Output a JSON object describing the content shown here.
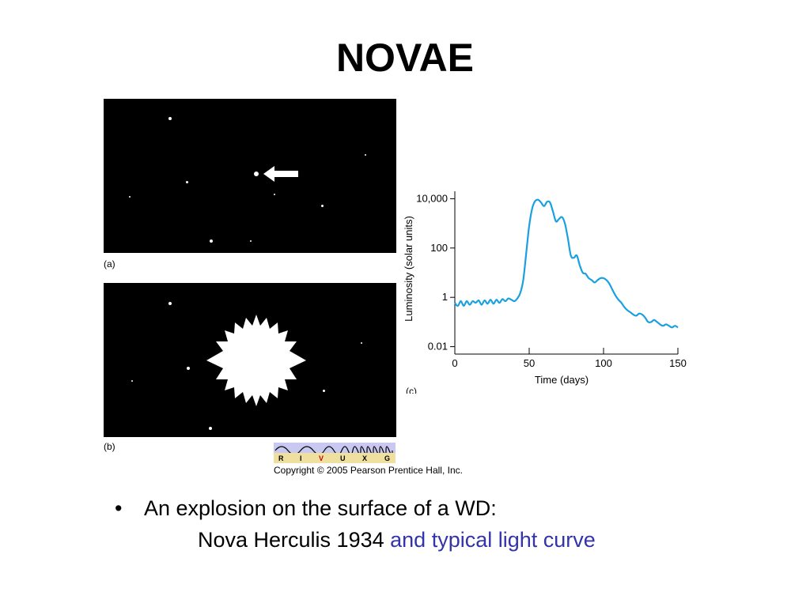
{
  "slide": {
    "title": "NOVAE",
    "panel_a_label": "(a)",
    "panel_b_label": "(b)",
    "panel_c_label": "(c)",
    "copyright": "Copyright © 2005 Pearson Prentice Hall, Inc.",
    "spectrum_letters": [
      "R",
      "I",
      "V",
      "U",
      "X",
      "G"
    ],
    "bullet": {
      "marker": "•",
      "line1": "An explosion on the surface of a WD:",
      "line2_plain": "Nova Herculis 1934",
      "line2_accent": "and typical light curve"
    }
  },
  "colors": {
    "curve": "#1aa0e0",
    "accent": "#3333aa",
    "photo_bg": "#000000"
  },
  "chart_data": {
    "type": "line",
    "title": "",
    "xlabel": "Time (days)",
    "ylabel": "Luminosity (solar units)",
    "x_ticks": [
      "0",
      "50",
      "100",
      "150"
    ],
    "y_ticks": [
      "0.01",
      "1",
      "100",
      "10,000"
    ],
    "xlim": [
      0,
      150
    ],
    "ylog": true,
    "ylim": [
      0.005,
      20000
    ],
    "grid": false,
    "series": [
      {
        "x": [
          0,
          2,
          4,
          6,
          8,
          10,
          12,
          14,
          16,
          18,
          20,
          22,
          24,
          26,
          28,
          30,
          32,
          34,
          36,
          38,
          40,
          42,
          44,
          46,
          48,
          50,
          52,
          54,
          56,
          58,
          60,
          62,
          64,
          66,
          68,
          70,
          72,
          74,
          76,
          78,
          80,
          82,
          84,
          86,
          88,
          90,
          92,
          94,
          96,
          98,
          100,
          102,
          104,
          106,
          108,
          110,
          112,
          114,
          116,
          118,
          120,
          122,
          124,
          126,
          128,
          130,
          132,
          134,
          136,
          138,
          140,
          142,
          144,
          146,
          148,
          150
        ],
        "values": [
          0.6,
          0.45,
          0.7,
          0.45,
          0.7,
          0.5,
          0.7,
          0.6,
          0.75,
          0.5,
          0.75,
          0.55,
          0.8,
          0.55,
          0.8,
          0.6,
          0.85,
          0.7,
          0.9,
          0.8,
          0.7,
          0.9,
          1.5,
          5,
          60,
          800,
          4000,
          8000,
          9000,
          7000,
          5000,
          7500,
          7000,
          3000,
          1200,
          1500,
          1800,
          1000,
          250,
          50,
          40,
          50,
          20,
          10,
          9,
          6,
          5,
          4,
          5,
          6,
          6,
          5,
          3.5,
          2,
          1.2,
          0.8,
          0.6,
          0.4,
          0.3,
          0.25,
          0.2,
          0.18,
          0.22,
          0.2,
          0.15,
          0.1,
          0.1,
          0.12,
          0.1,
          0.08,
          0.07,
          0.08,
          0.07,
          0.06,
          0.07,
          0.06
        ]
      }
    ]
  }
}
